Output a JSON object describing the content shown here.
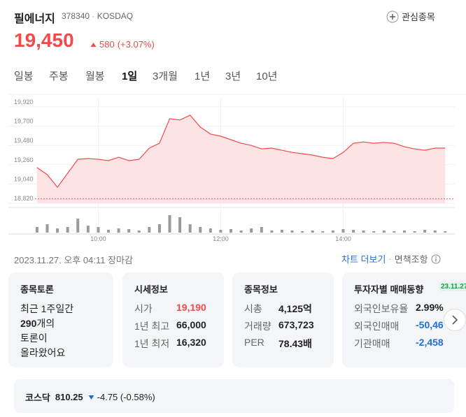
{
  "header": {
    "name": "필에너지",
    "code": "378340",
    "dot": "·",
    "market": "KOSDAQ",
    "watch": "관심종목",
    "price": "19,450",
    "change": "580",
    "change_pct": "(+3.07%)"
  },
  "tabs": [
    "일봉",
    "주봉",
    "월봉",
    "1일",
    "3개월",
    "1년",
    "3년",
    "10년"
  ],
  "active_tab": 3,
  "chart_data": {
    "type": "line",
    "x": [
      540,
      550,
      560,
      570,
      580,
      590,
      600,
      610,
      620,
      630,
      640,
      650,
      660,
      670,
      680,
      690,
      700,
      710,
      720,
      730,
      740,
      750,
      760,
      770,
      780,
      790,
      800,
      810,
      820,
      830,
      840,
      850,
      860,
      870,
      880,
      890,
      900,
      910,
      920,
      930,
      940
    ],
    "values": [
      19227,
      19147,
      19003,
      19163,
      19322,
      19330,
      19322,
      19306,
      19346,
      19306,
      19322,
      19450,
      19505,
      19785,
      19770,
      19825,
      19690,
      19610,
      19585,
      19545,
      19505,
      19480,
      19440,
      19450,
      19425,
      19400,
      19385,
      19370,
      19345,
      19330,
      19400,
      19505,
      19520,
      19505,
      19515,
      19505,
      19465,
      19440,
      19425,
      19450,
      19450
    ],
    "volume": [
      8,
      12,
      6,
      8,
      20,
      10,
      8,
      4,
      6,
      5,
      3,
      8,
      12,
      25,
      22,
      12,
      8,
      6,
      4,
      5,
      3,
      6,
      8,
      3,
      4,
      3,
      2,
      3,
      2,
      3,
      5,
      4,
      3,
      2,
      3,
      2,
      3,
      2,
      4,
      3,
      2
    ],
    "color": "#f04c4c",
    "fill": "#fde3e3",
    "volume_color": "#9a9a9a",
    "prev_close": 18870,
    "xlim": [
      538,
      948
    ],
    "ylim": [
      18820,
      19920
    ],
    "yticks": [
      {
        "value": 18820,
        "label": "18,820"
      },
      {
        "value": 19040,
        "label": "19,040"
      },
      {
        "value": 19260,
        "label": "19,260"
      },
      {
        "value": 19480,
        "label": "19,480"
      },
      {
        "value": 19700,
        "label": "19,700"
      },
      {
        "value": 19920,
        "label": "19,920"
      }
    ],
    "xticks": [
      {
        "value": 600,
        "label": "10:00"
      },
      {
        "value": 720,
        "label": "12:00"
      },
      {
        "value": 840,
        "label": "14:00"
      }
    ],
    "grid": true
  },
  "status": {
    "timestamp": "2023.11.27. 오후 04:11 장마감",
    "more": "차트 더보기",
    "separator": "·",
    "disclaimer": "면책조항"
  },
  "cards": [
    {
      "title": "종목토론",
      "intro": "최근 1주일간",
      "count": "290",
      "count_suffix": "개의",
      "lines": [
        "토론이",
        "올라왔어요"
      ]
    },
    {
      "title": "시세정보",
      "rows": [
        {
          "label": "시가",
          "value": "19,190",
          "tone": "up"
        },
        {
          "label": "1년 최고",
          "value": "66,000",
          "tone": "plain"
        },
        {
          "label": "1년 최저",
          "value": "16,320",
          "tone": "plain"
        }
      ]
    },
    {
      "title": "종목정보",
      "rows": [
        {
          "label": "시총",
          "value": "4,125억",
          "tone": "plain"
        },
        {
          "label": "거래량",
          "value": "673,723",
          "tone": "plain"
        },
        {
          "label": "PER",
          "value": "78.43배",
          "tone": "plain"
        }
      ]
    },
    {
      "title": "투자자별 매매동향",
      "badge": "23.11.27",
      "rows": [
        {
          "label": "외국인보유율",
          "value": "2.99%",
          "tone": "plain"
        },
        {
          "label": "외국인매매",
          "value": "-50,46",
          "tone": "down"
        },
        {
          "label": "기관매매",
          "value": "-2,458",
          "tone": "down"
        }
      ]
    }
  ],
  "index": {
    "name": "코스닥",
    "value": "810.25",
    "change": "-4.75 (-0.58%)"
  }
}
